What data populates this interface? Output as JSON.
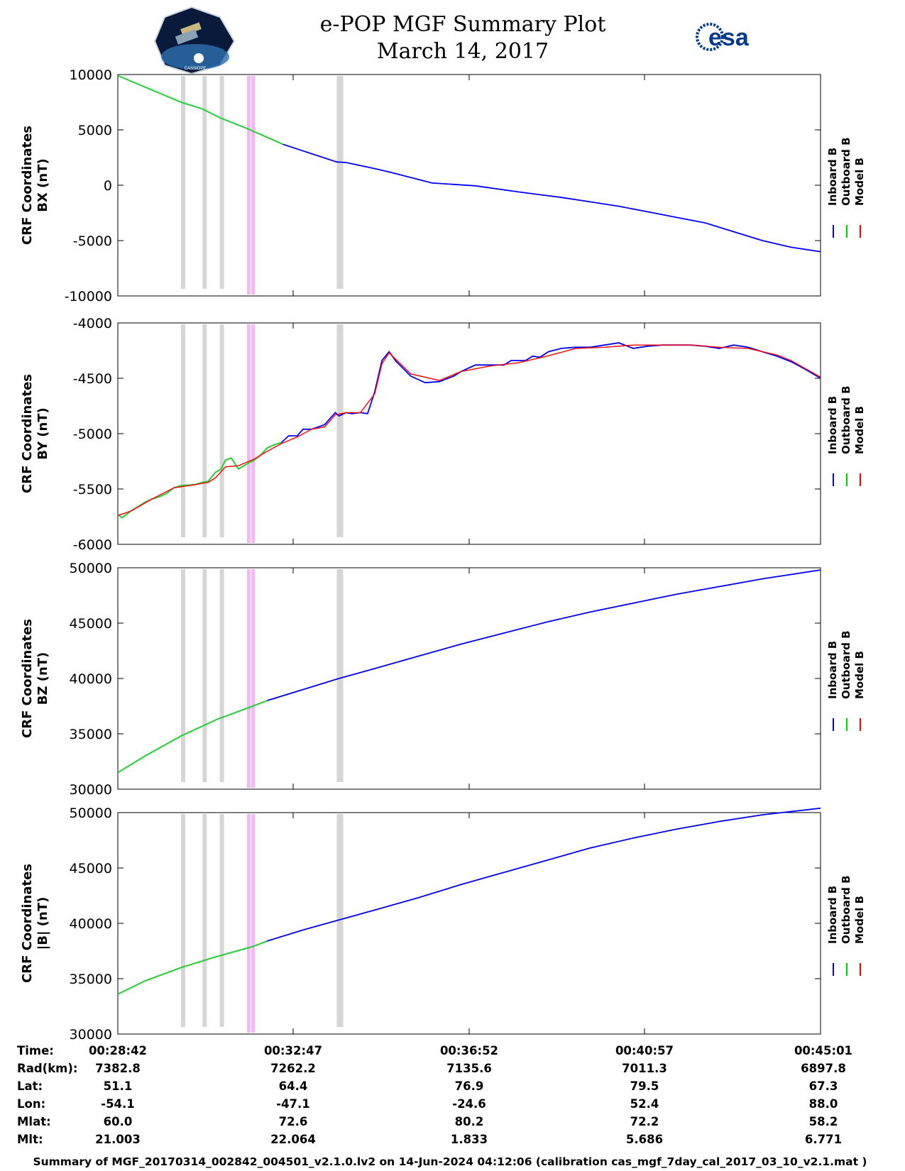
{
  "header": {
    "title": "e-POP MGF Summary Plot",
    "date": "March 14, 2017",
    "logo_left_text": "CASSIOPE",
    "logo_right_text": "esa"
  },
  "footer": {
    "text": "Summary of MGF_20170314_002842_004501_v2.1.0.lv2 on 14-Jun-2024 04:12:06 (calibration cas_mgf_7day_cal_2017_03_10_v2.1.mat )"
  },
  "table": {
    "row_labels": [
      "Time:",
      "Rad(km):",
      "Lat:",
      "Lon:",
      "Mlat:",
      "Mlt:"
    ],
    "columns": [
      [
        "00:28:42",
        "7382.8",
        "51.1",
        "-54.1",
        "60.0",
        "21.003"
      ],
      [
        "00:32:47",
        "7262.2",
        "64.4",
        "-47.1",
        "72.6",
        "22.064"
      ],
      [
        "00:36:52",
        "7135.6",
        "76.9",
        "-24.6",
        "80.2",
        "1.833"
      ],
      [
        "00:40:57",
        "7011.3",
        "79.5",
        "52.4",
        "72.2",
        "5.686"
      ],
      [
        "00:45:01",
        "6897.8",
        "67.3",
        "88.0",
        "58.2",
        "6.771"
      ]
    ]
  },
  "legend": {
    "entries": [
      {
        "label": "Inboard B",
        "color": "#0000ff"
      },
      {
        "label": "Outboard B",
        "color": "#00cc00"
      },
      {
        "label": "Model B",
        "color": "#ff0000"
      }
    ]
  },
  "colors": {
    "inboard": "#0000ff",
    "outboard": "#22dd22",
    "model": "#ff0000",
    "gray_band": "#d6d6d6",
    "pink_band": "#f5b8f5"
  },
  "chart_data": [
    {
      "type": "line",
      "ylabel": [
        "CRF Coordinates",
        "BX (nT)"
      ],
      "ylim": [
        -10000,
        10000
      ],
      "yticks": [
        10000,
        5000,
        0,
        -5000,
        -10000
      ],
      "x_range_seconds_of_hour": [
        1722,
        2701
      ],
      "gray_bands": [
        [
          1810,
          1814
        ],
        [
          1840,
          1844
        ],
        [
          1864,
          1868
        ],
        [
          2027,
          2036
        ]
      ],
      "pink_bands": [
        [
          1902,
          1905
        ],
        [
          1908,
          1911
        ]
      ],
      "outboard_end": 1952,
      "series": [
        {
          "name": "Inboard B",
          "x": [
            1722,
            1810,
            1840,
            1864,
            1903,
            1952,
            2027,
            2040,
            2080,
            2100,
            2160,
            2220,
            2280,
            2340,
            2380,
            2420,
            2460,
            2500,
            2540,
            2580,
            2620,
            2660,
            2701
          ],
          "y": [
            9900,
            7500,
            6900,
            6100,
            5100,
            3700,
            2100,
            2050,
            1500,
            1200,
            200,
            -50,
            -600,
            -1100,
            -1500,
            -1900,
            -2400,
            -2900,
            -3400,
            -4200,
            -5000,
            -5600,
            -6000
          ]
        }
      ]
    },
    {
      "type": "line",
      "ylabel": [
        "CRF Coordinates",
        "BY (nT)"
      ],
      "ylim": [
        -6000,
        -4000
      ],
      "yticks": [
        -4000,
        -4500,
        -5000,
        -5500,
        -6000
      ],
      "x_range_seconds_of_hour": [
        1722,
        2701
      ],
      "gray_bands": [
        [
          1810,
          1814
        ],
        [
          1840,
          1844
        ],
        [
          1864,
          1868
        ],
        [
          2027,
          2036
        ]
      ],
      "pink_bands": [
        [
          1902,
          1905
        ],
        [
          1908,
          1911
        ]
      ],
      "outboard_end": 1952,
      "series": [
        {
          "name": "Inboard B",
          "x": [
            1722,
            1728,
            1740,
            1760,
            1770,
            1780,
            1790,
            1800,
            1810,
            1830,
            1840,
            1848,
            1858,
            1866,
            1872,
            1880,
            1890,
            1900,
            1912,
            1920,
            1930,
            1940,
            1950,
            1960,
            1972,
            1980,
            1992,
            2010,
            2025,
            2030,
            2040,
            2048,
            2060,
            2070,
            2080,
            2090,
            2100,
            2110,
            2130,
            2150,
            2170,
            2190,
            2200,
            2220,
            2240,
            2260,
            2270,
            2280,
            2290,
            2300,
            2310,
            2322,
            2340,
            2360,
            2380,
            2400,
            2420,
            2440,
            2460,
            2480,
            2500,
            2520,
            2540,
            2560,
            2580,
            2600,
            2620,
            2640,
            2660,
            2680,
            2701
          ],
          "y": [
            -5730,
            -5760,
            -5700,
            -5620,
            -5590,
            -5570,
            -5540,
            -5490,
            -5470,
            -5460,
            -5440,
            -5430,
            -5350,
            -5320,
            -5240,
            -5220,
            -5320,
            -5280,
            -5240,
            -5200,
            -5130,
            -5100,
            -5080,
            -5020,
            -5020,
            -4960,
            -4960,
            -4920,
            -4810,
            -4840,
            -4810,
            -4820,
            -4810,
            -4820,
            -4620,
            -4340,
            -4260,
            -4350,
            -4480,
            -4540,
            -4530,
            -4480,
            -4440,
            -4380,
            -4380,
            -4380,
            -4340,
            -4340,
            -4340,
            -4300,
            -4310,
            -4260,
            -4230,
            -4220,
            -4220,
            -4200,
            -4180,
            -4230,
            -4210,
            -4200,
            -4200,
            -4200,
            -4210,
            -4230,
            -4200,
            -4220,
            -4260,
            -4300,
            -4350,
            -4420,
            -4500
          ]
        },
        {
          "name": "Model B",
          "x": [
            1722,
            1740,
            1770,
            1800,
            1830,
            1848,
            1858,
            1872,
            1890,
            1912,
            1930,
            1950,
            1972,
            1992,
            2010,
            2025,
            2040,
            2060,
            2080,
            2090,
            2100,
            2130,
            2170,
            2200,
            2240,
            2280,
            2320,
            2360,
            2400,
            2440,
            2480,
            2520,
            2560,
            2600,
            2640,
            2660,
            2701
          ],
          "y": [
            -5740,
            -5700,
            -5590,
            -5490,
            -5460,
            -5440,
            -5400,
            -5300,
            -5290,
            -5230,
            -5160,
            -5090,
            -5030,
            -4960,
            -4940,
            -4830,
            -4810,
            -4810,
            -4640,
            -4370,
            -4270,
            -4460,
            -4520,
            -4440,
            -4390,
            -4360,
            -4300,
            -4230,
            -4220,
            -4200,
            -4200,
            -4200,
            -4220,
            -4230,
            -4290,
            -4340,
            -4490
          ]
        }
      ]
    },
    {
      "type": "line",
      "ylabel": [
        "CRF Coordinates",
        "BZ (nT)"
      ],
      "ylim": [
        30000,
        50000
      ],
      "yticks": [
        50000,
        45000,
        40000,
        35000,
        30000
      ],
      "x_range_seconds_of_hour": [
        1722,
        2701
      ],
      "gray_bands": [
        [
          1810,
          1814
        ],
        [
          1840,
          1844
        ],
        [
          1864,
          1868
        ],
        [
          2027,
          2036
        ]
      ],
      "pink_bands": [
        [
          1902,
          1905
        ],
        [
          1908,
          1911
        ]
      ],
      "outboard_end": 1930,
      "series": [
        {
          "name": "Inboard B",
          "x": [
            1722,
            1760,
            1810,
            1860,
            1910,
            1930,
            1980,
            2030,
            2080,
            2140,
            2200,
            2260,
            2320,
            2380,
            2440,
            2500,
            2560,
            2620,
            2701
          ],
          "y": [
            31500,
            33000,
            34800,
            36300,
            37500,
            38000,
            39000,
            40000,
            40900,
            42000,
            43100,
            44100,
            45100,
            46000,
            46800,
            47600,
            48300,
            49000,
            49800
          ]
        }
      ]
    },
    {
      "type": "line",
      "ylabel": [
        "CRF Coordinates",
        "|B| (nT)"
      ],
      "ylim": [
        30000,
        50000
      ],
      "yticks": [
        50000,
        45000,
        40000,
        35000,
        30000
      ],
      "x_range_seconds_of_hour": [
        1722,
        2701
      ],
      "gray_bands": [
        [
          1810,
          1814
        ],
        [
          1840,
          1844
        ],
        [
          1864,
          1868
        ],
        [
          2027,
          2036
        ]
      ],
      "pink_bands": [
        [
          1902,
          1905
        ],
        [
          1908,
          1911
        ]
      ],
      "outboard_end": 1930,
      "series": [
        {
          "name": "Inboard B",
          "x": [
            1722,
            1760,
            1810,
            1860,
            1910,
            1930,
            1980,
            2030,
            2080,
            2140,
            2200,
            2260,
            2320,
            2380,
            2440,
            2500,
            2560,
            2620,
            2701
          ],
          "y": [
            33600,
            34800,
            36000,
            37000,
            37900,
            38400,
            39400,
            40300,
            41200,
            42300,
            43500,
            44600,
            45700,
            46800,
            47700,
            48500,
            49200,
            49800,
            50400
          ]
        }
      ]
    }
  ]
}
